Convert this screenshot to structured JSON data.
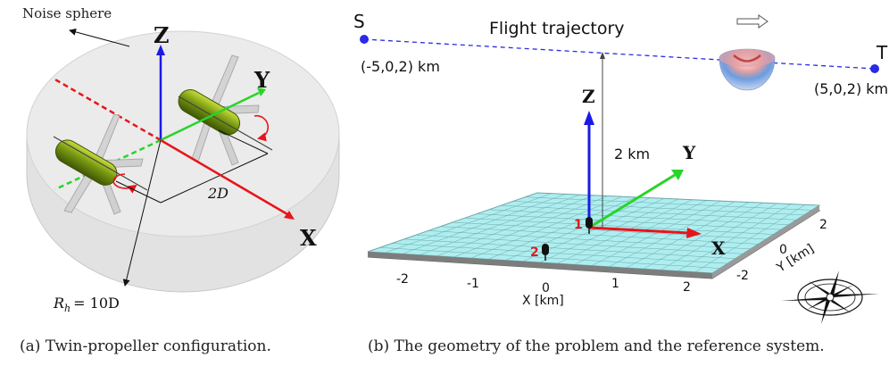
{
  "left_panel": {
    "noise_sphere_label": "Noise sphere",
    "axis_z": "Z",
    "axis_y": "Y",
    "axis_x": "X",
    "spacing_label": "2D",
    "radius_label": "R",
    "radius_sub": "h",
    "radius_value": "= 10D",
    "caption": "(a) Twin-propeller configuration."
  },
  "right_panel": {
    "start_label": "S",
    "end_label": "T",
    "trajectory_title": "Flight trajectory",
    "start_coords": "(-5,0,2) km",
    "end_coords": "(5,0,2) km",
    "altitude_label": "2 km",
    "axis_z": "Z",
    "axis_y": "Y",
    "axis_x": "X",
    "mic_1": "1",
    "mic_2": "2",
    "x_axis_title": "X [km]",
    "y_axis_title": "Y [km]",
    "x_ticks": [
      "-2",
      "-1",
      "0",
      "1",
      "2"
    ],
    "y_ticks": [
      "2",
      "0",
      "-2"
    ],
    "caption": "(b) The geometry of the problem and the reference system."
  },
  "colors": {
    "axis_red": "#e8141a",
    "axis_green": "#28d428",
    "axis_blue": "#1a1ae6",
    "trajectory_blue": "#2a2ae8",
    "ground_cyan": "#aeeef0",
    "propeller_green": "#6a8e0a"
  }
}
